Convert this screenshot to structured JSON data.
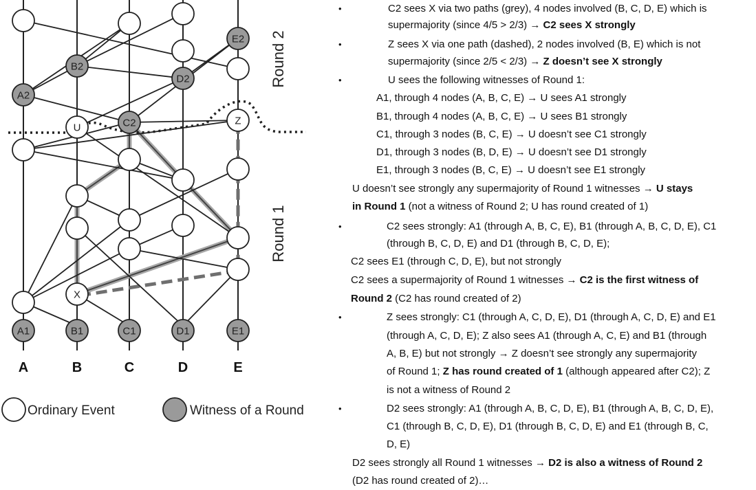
{
  "diagram": {
    "columns": [
      "A",
      "B",
      "C",
      "D",
      "E"
    ],
    "round_labels": {
      "round1": "Round 1",
      "round2": "Round 2"
    },
    "labeled_nodes": {
      "A1": "A1",
      "B1": "B1",
      "C1": "C1",
      "D1": "D1",
      "E1": "E1",
      "A2": "A2",
      "B2": "B2",
      "C2": "C2",
      "D2": "D2",
      "E2": "E2",
      "X": "X",
      "U": "U",
      "Z": "Z"
    },
    "legend": {
      "ordinary": "Ordinary Event",
      "witness": "Witness of a Round"
    },
    "colors": {
      "witness_fill": "#9a9a9a",
      "grey_path": "#a8a8a8",
      "dashed_path": "#6f6f6f"
    }
  },
  "notes": {
    "l1": "C2 sees X via two paths (grey), 4 nodes involved (B, C, D, E) which is",
    "l2": "supermajority (since 4/5 > 2/3) → ",
    "l2b": "C2 sees X strongly",
    "l3": "Z sees X via one path (dashed), 2 nodes involved (B, E) which is not",
    "l4": "supermajority (since 2/5 < 2/3) → ",
    "l4b": "Z doesn’t see X strongly",
    "l5": "U sees the following witnesses of Round 1:",
    "l6": "A1, through 4 nodes (A, B, C, E) → U sees A1 strongly",
    "l7": "B1, through 4 nodes (A, B, C, E) → U sees B1 strongly",
    "l8": "C1, through 3 nodes (B, C, E) → U doesn’t see C1 strongly",
    "l9": "D1, through 3 nodes (B, D, E) → U doesn’t see D1 strongly",
    "l10": "E1, through 3 nodes (B, C, E) → U doesn’t see E1 strongly",
    "l11": "U doesn’t see strongly any supermajority of Round 1 witnesses → ",
    "l11b": "U stays",
    "l12b": "in Round 1",
    "l12": " (not a witness of Round 2; U has round created of 1)",
    "l13": "C2 sees strongly: A1 (through A, B, C, E), B1 (through A, B, C, D, E), C1",
    "l14": "(through B, C, D, E) and D1 (through B, C, D, E);",
    "l15": "C2 sees E1 (through C, D, E), but not strongly",
    "l16": "C2 sees a supermajority of Round 1 witnesses → ",
    "l16b": "C2 is the first witness of",
    "l17b": "Round 2",
    "l17": " (C2 has round created of 2)",
    "l18": "Z sees strongly: C1 (through A, C, D, E), D1 (through A, C, D, E) and E1",
    "l19": "(through A, C, D, E); Z also sees A1 (through A, C, E) and B1 (through",
    "l20": "A, B, E) but not strongly →  Z doesn’t see strongly any supermajority",
    "l21": "of Round 1; ",
    "l21b": "Z has round created of 1",
    "l21c": " (although appeared after C2); Z",
    "l22": "is not a witness of Round 2",
    "l23": "D2 sees strongly: A1 (through A, B, C, D, E), B1 (through A, B, C, D, E),",
    "l24": "C1 (through B, C, D, E), D1 (through B, C, D, E) and E1 (through B, C,",
    "l25": "D, E)",
    "l26": "D2 sees strongly all Round 1 witnesses → ",
    "l26b": "D2 is also a witness of Round 2",
    "l27": "(D2 has round created of 2)…"
  }
}
